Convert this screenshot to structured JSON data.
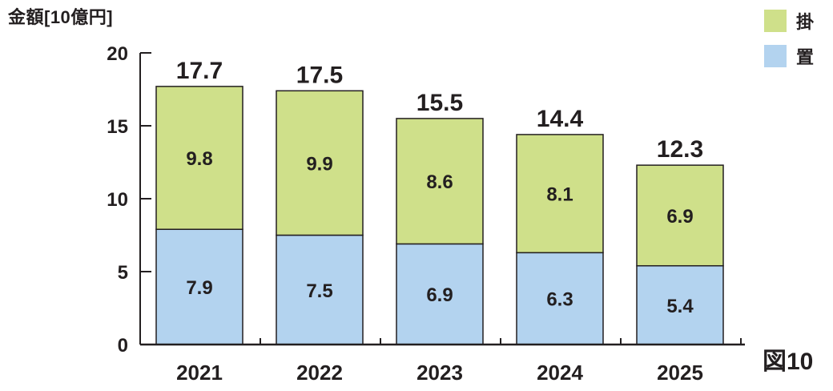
{
  "chart_data": {
    "type": "bar",
    "stacked": true,
    "ylabel": "金額[10億円]",
    "figure_label": "図10",
    "categories": [
      "2021",
      "2022",
      "2023",
      "2024",
      "2025"
    ],
    "ylim": [
      0,
      20
    ],
    "yticks": [
      "0",
      "5",
      "10",
      "15",
      "20"
    ],
    "series": [
      {
        "name": "置",
        "color": "#b3d3ef",
        "values": [
          7.9,
          7.5,
          6.9,
          6.3,
          5.4
        ]
      },
      {
        "name": "掛",
        "color": "#cfe08a",
        "values": [
          9.8,
          9.9,
          8.6,
          8.1,
          6.9
        ]
      }
    ],
    "totals": [
      17.7,
      17.5,
      15.5,
      14.4,
      12.3
    ],
    "legend": [
      {
        "name": "掛",
        "color": "#cfe08a"
      },
      {
        "name": "置",
        "color": "#b3d3ef"
      }
    ]
  }
}
